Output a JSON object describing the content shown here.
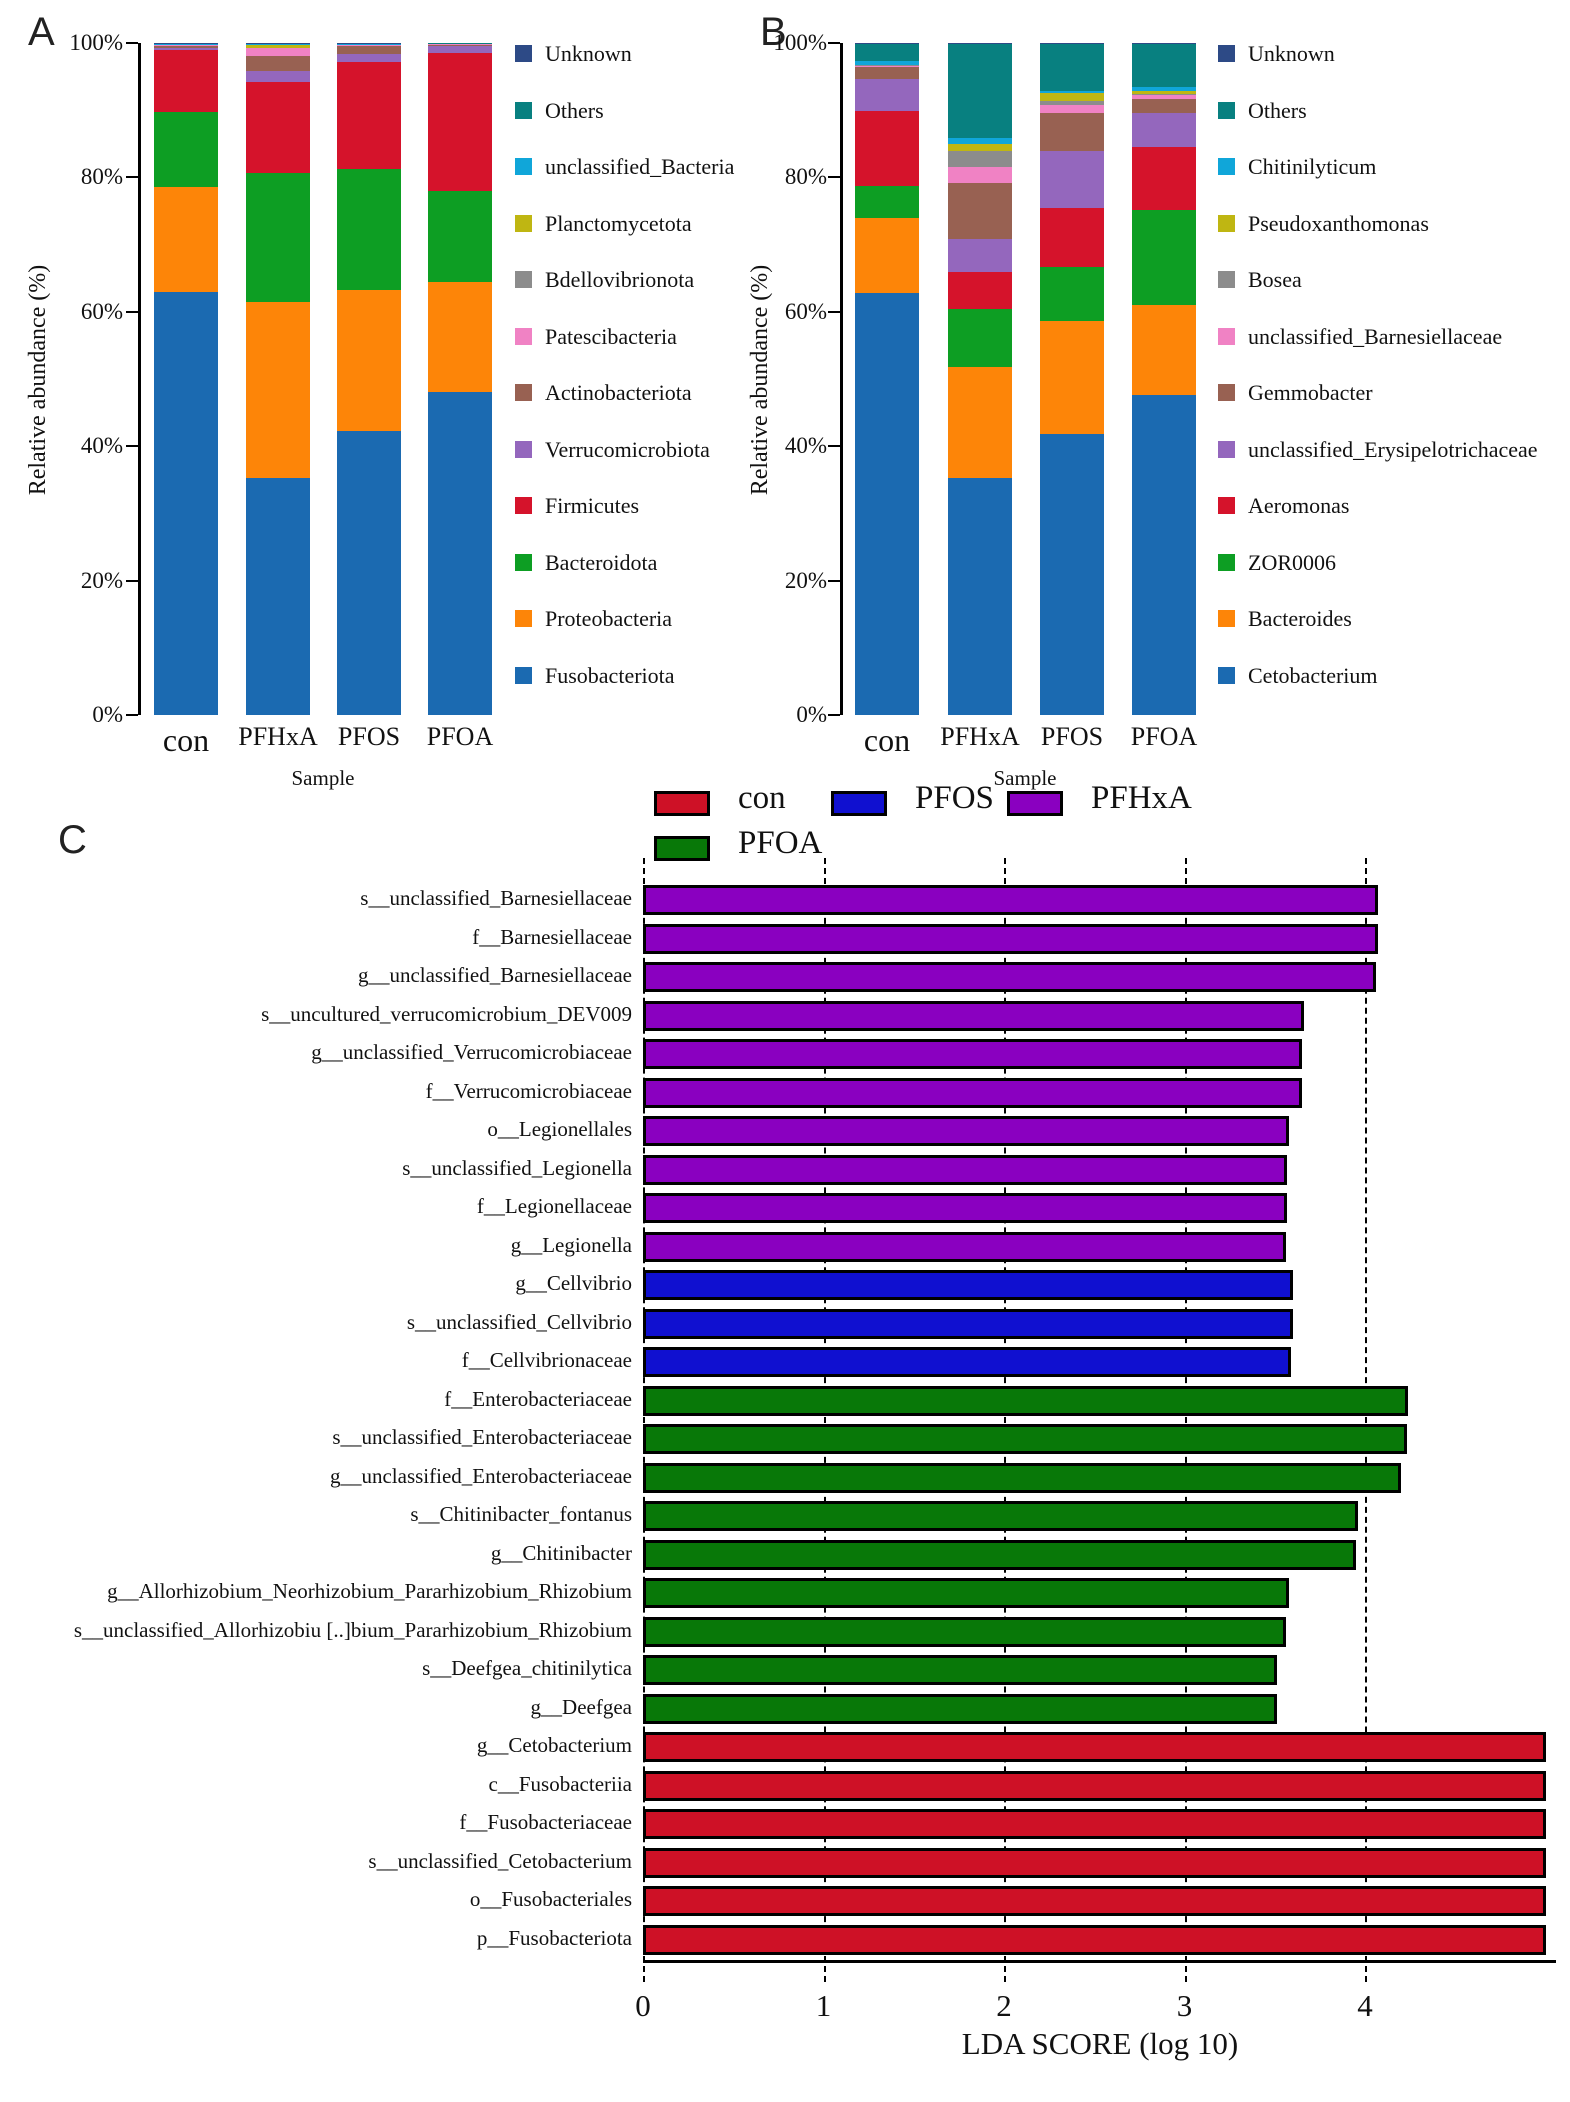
{
  "chart_data": [
    {
      "id": "A",
      "type": "bar",
      "subtype": "stacked-percent-vertical",
      "panel_label": "A",
      "ylabel": "Relative abundance (%)",
      "xlabel": "Sample",
      "ylim": [
        0,
        100
      ],
      "y_tick_labels": [
        "100%",
        "80%",
        "60%",
        "40%",
        "20%",
        "0%"
      ],
      "categories": [
        "con",
        "PFHxA",
        "PFOS",
        "PFOA"
      ],
      "legend_position": "right",
      "legend_top_to_bottom": [
        "Unknown",
        "Others",
        "unclassified_Bacteria",
        "Planctomycetota",
        "Bdellovibrionota",
        "Patescibacteria",
        "Actinobacteriota",
        "Verrucomicrobiota",
        "Firmicutes",
        "Bacteroidota",
        "Proteobacteria",
        "Fusobacteriota"
      ],
      "series": [
        {
          "name": "Fusobacteriota",
          "color": "#1b6ab1",
          "values": [
            63.0,
            35.2,
            42.3,
            48.0
          ]
        },
        {
          "name": "Proteobacteria",
          "color": "#fd8508",
          "values": [
            15.6,
            26.3,
            20.9,
            16.4
          ]
        },
        {
          "name": "Bacteroidota",
          "color": "#0d9e23",
          "values": [
            11.2,
            19.2,
            18.1,
            13.5
          ]
        },
        {
          "name": "Firmicutes",
          "color": "#d5132b",
          "values": [
            9.2,
            13.5,
            15.9,
            20.6
          ]
        },
        {
          "name": "Verrucomicrobiota",
          "color": "#9467bd",
          "values": [
            0.2,
            1.7,
            1.1,
            1.1
          ]
        },
        {
          "name": "Actinobacteriota",
          "color": "#986152",
          "values": [
            0.4,
            2.2,
            1.3,
            0.15
          ]
        },
        {
          "name": "Patescibacteria",
          "color": "#f082c4",
          "values": [
            0.05,
            1.1,
            0.05,
            0.03
          ]
        },
        {
          "name": "Bdellovibrionota",
          "color": "#8c8c8c",
          "values": [
            0.05,
            0.1,
            0.05,
            0.03
          ]
        },
        {
          "name": "Planctomycetota",
          "color": "#bfb612",
          "values": [
            0.05,
            0.4,
            0.05,
            0.03
          ]
        },
        {
          "name": "unclassified_Bacteria",
          "color": "#10a6d9",
          "values": [
            0.05,
            0.1,
            0.05,
            0.03
          ]
        },
        {
          "name": "Others",
          "color": "#088080",
          "values": [
            0.1,
            0.1,
            0.1,
            0.06
          ]
        },
        {
          "name": "Unknown",
          "color": "#2d4a86",
          "values": [
            0.1,
            0.1,
            0.1,
            0.07
          ]
        }
      ]
    },
    {
      "id": "B",
      "type": "bar",
      "subtype": "stacked-percent-vertical",
      "panel_label": "B",
      "ylabel": "Relative abundance (%)",
      "xlabel": "Sample",
      "ylim": [
        0,
        100
      ],
      "y_tick_labels": [
        "100%",
        "80%",
        "60%",
        "40%",
        "20%",
        "0%"
      ],
      "categories": [
        "con",
        "PFHxA",
        "PFOS",
        "PFOA"
      ],
      "legend_position": "right",
      "legend_top_to_bottom": [
        "Unknown",
        "Others",
        "Chitinilyticum",
        "Pseudoxanthomonas",
        "Bosea",
        "unclassified_Barnesiellaceae",
        "Gemmobacter",
        "unclassified_Erysipelotrichaceae",
        "Aeromonas",
        "ZOR0006",
        "Bacteroides",
        "Cetobacterium"
      ],
      "series": [
        {
          "name": "Cetobacterium",
          "color": "#1b6ab1",
          "values": [
            62.8,
            35.2,
            41.8,
            47.6
          ]
        },
        {
          "name": "Bacteroides",
          "color": "#fd8508",
          "values": [
            11.2,
            16.6,
            16.8,
            13.4
          ]
        },
        {
          "name": "ZOR0006",
          "color": "#0d9e23",
          "values": [
            4.7,
            8.6,
            8.0,
            14.1
          ]
        },
        {
          "name": "Aeromonas",
          "color": "#d5132b",
          "values": [
            11.2,
            5.5,
            8.8,
            9.4
          ]
        },
        {
          "name": "unclassified_Erysipelotrichaceae",
          "color": "#9467bd",
          "values": [
            4.7,
            4.9,
            8.5,
            5.1
          ]
        },
        {
          "name": "Gemmobacter",
          "color": "#986152",
          "values": [
            1.9,
            8.3,
            5.7,
            2.0
          ]
        },
        {
          "name": "unclassified_Barnesiellaceae",
          "color": "#f082c4",
          "values": [
            0.1,
            2.5,
            1.1,
            0.6
          ]
        },
        {
          "name": "Bosea",
          "color": "#8c8c8c",
          "values": [
            0.1,
            2.3,
            0.7,
            0.2
          ]
        },
        {
          "name": "Pseudoxanthomonas",
          "color": "#bfb612",
          "values": [
            0.1,
            1.0,
            1.1,
            0.5
          ]
        },
        {
          "name": "Chitinilyticum",
          "color": "#10a6d9",
          "values": [
            0.5,
            0.9,
            0.4,
            0.5
          ]
        },
        {
          "name": "Others",
          "color": "#088080",
          "values": [
            2.5,
            14.1,
            7.0,
            6.5
          ]
        },
        {
          "name": "Unknown",
          "color": "#2d4a86",
          "values": [
            0.2,
            0.1,
            0.1,
            0.1
          ]
        }
      ]
    },
    {
      "id": "C",
      "type": "bar",
      "subtype": "horizontal",
      "panel_label": "C",
      "xlabel": "LDA SCORE (log 10)",
      "xlim": [
        0,
        5.06
      ],
      "x_tick_labels": [
        "0",
        "1",
        "2",
        "3",
        "4"
      ],
      "grid": "dashed-vertical",
      "legend": [
        {
          "label": "con",
          "color": "#ce1126"
        },
        {
          "label": "PFOS",
          "color": "#1010d0"
        },
        {
          "label": "PFHxA",
          "color": "#8a00c0"
        },
        {
          "label": "PFOA",
          "color": "#087808"
        }
      ],
      "bars": [
        {
          "label": "s__unclassified_Barnesiellaceae",
          "group": "PFHxA",
          "value": 4.07
        },
        {
          "label": "f__Barnesiellaceae",
          "group": "PFHxA",
          "value": 4.07
        },
        {
          "label": "g__unclassified_Barnesiellaceae",
          "group": "PFHxA",
          "value": 4.06
        },
        {
          "label": "s__uncultured_verrucomicrobium_DEV009",
          "group": "PFHxA",
          "value": 3.66
        },
        {
          "label": "g__unclassified_Verrucomicrobiaceae",
          "group": "PFHxA",
          "value": 3.65
        },
        {
          "label": "f__Verrucomicrobiaceae",
          "group": "PFHxA",
          "value": 3.65
        },
        {
          "label": "o__Legionellales",
          "group": "PFHxA",
          "value": 3.58
        },
        {
          "label": "s__unclassified_Legionella",
          "group": "PFHxA",
          "value": 3.57
        },
        {
          "label": "f__Legionellaceae",
          "group": "PFHxA",
          "value": 3.57
        },
        {
          "label": "g__Legionella",
          "group": "PFHxA",
          "value": 3.56
        },
        {
          "label": "g__Cellvibrio",
          "group": "PFOS",
          "value": 3.6
        },
        {
          "label": "s__unclassified_Cellvibrio",
          "group": "PFOS",
          "value": 3.6
        },
        {
          "label": "f__Cellvibrionaceae",
          "group": "PFOS",
          "value": 3.59
        },
        {
          "label": "f__Enterobacteriaceae",
          "group": "PFOA",
          "value": 4.24
        },
        {
          "label": "s__unclassified_Enterobacteriaceae",
          "group": "PFOA",
          "value": 4.23
        },
        {
          "label": "g__unclassified_Enterobacteriaceae",
          "group": "PFOA",
          "value": 4.2
        },
        {
          "label": "s__Chitinibacter_fontanus",
          "group": "PFOA",
          "value": 3.96
        },
        {
          "label": "g__Chitinibacter",
          "group": "PFOA",
          "value": 3.95
        },
        {
          "label": "g__Allorhizobium_Neorhizobium_Pararhizobium_Rhizobium",
          "group": "PFOA",
          "value": 3.58
        },
        {
          "label": "s__unclassified_Allorhizobiu [..]bium_Pararhizobium_Rhizobium",
          "group": "PFOA",
          "value": 3.56
        },
        {
          "label": "s__Deefgea_chitinilytica",
          "group": "PFOA",
          "value": 3.51
        },
        {
          "label": "g__Deefgea",
          "group": "PFOA",
          "value": 3.51
        },
        {
          "label": "g__Cetobacterium",
          "group": "con",
          "value": 5.0
        },
        {
          "label": "c__Fusobacteriia",
          "group": "con",
          "value": 5.0
        },
        {
          "label": "f__Fusobacteriaceae",
          "group": "con",
          "value": 5.0
        },
        {
          "label": "s__unclassified_Cetobacterium",
          "group": "con",
          "value": 5.0
        },
        {
          "label": "o__Fusobacteriales",
          "group": "con",
          "value": 5.0
        },
        {
          "label": "p__Fusobacteriota",
          "group": "con",
          "value": 5.0
        }
      ]
    }
  ]
}
